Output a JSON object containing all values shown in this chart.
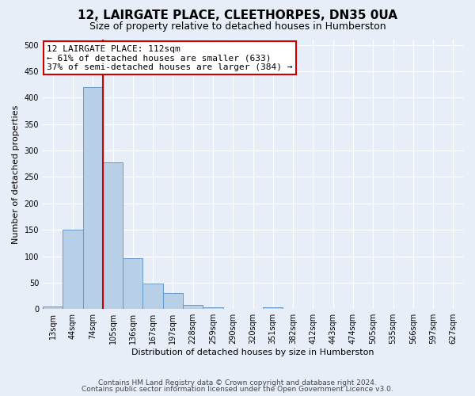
{
  "title": "12, LAIRGATE PLACE, CLEETHORPES, DN35 0UA",
  "subtitle": "Size of property relative to detached houses in Humberston",
  "xlabel": "Distribution of detached houses by size in Humberston",
  "ylabel": "Number of detached properties",
  "footer_line1": "Contains HM Land Registry data © Crown copyright and database right 2024.",
  "footer_line2": "Contains public sector information licensed under the Open Government Licence v3.0.",
  "categories": [
    "13sqm",
    "44sqm",
    "74sqm",
    "105sqm",
    "136sqm",
    "167sqm",
    "197sqm",
    "228sqm",
    "259sqm",
    "290sqm",
    "320sqm",
    "351sqm",
    "382sqm",
    "412sqm",
    "443sqm",
    "474sqm",
    "505sqm",
    "535sqm",
    "566sqm",
    "597sqm",
    "627sqm"
  ],
  "values": [
    5,
    150,
    420,
    277,
    97,
    48,
    30,
    8,
    4,
    0,
    0,
    4,
    0,
    0,
    0,
    0,
    0,
    0,
    0,
    0,
    0
  ],
  "bar_color": "#b8cfe8",
  "bar_edge_color": "#6699cc",
  "vline_index": 3,
  "vline_color": "#cc0000",
  "annotation_text": "12 LAIRGATE PLACE: 112sqm\n← 61% of detached houses are smaller (633)\n37% of semi-detached houses are larger (384) →",
  "annotation_box_facecolor": "white",
  "annotation_box_edgecolor": "#cc0000",
  "yticks": [
    0,
    50,
    100,
    150,
    200,
    250,
    300,
    350,
    400,
    450,
    500
  ],
  "ylim": [
    0,
    510
  ],
  "bg_color": "#e8eef8",
  "fig_bg_color": "#e8eef8",
  "grid_color": "white",
  "title_fontsize": 11,
  "subtitle_fontsize": 9,
  "footer_fontsize": 6.5,
  "tick_fontsize": 7,
  "axis_label_fontsize": 8,
  "annotation_fontsize": 8
}
